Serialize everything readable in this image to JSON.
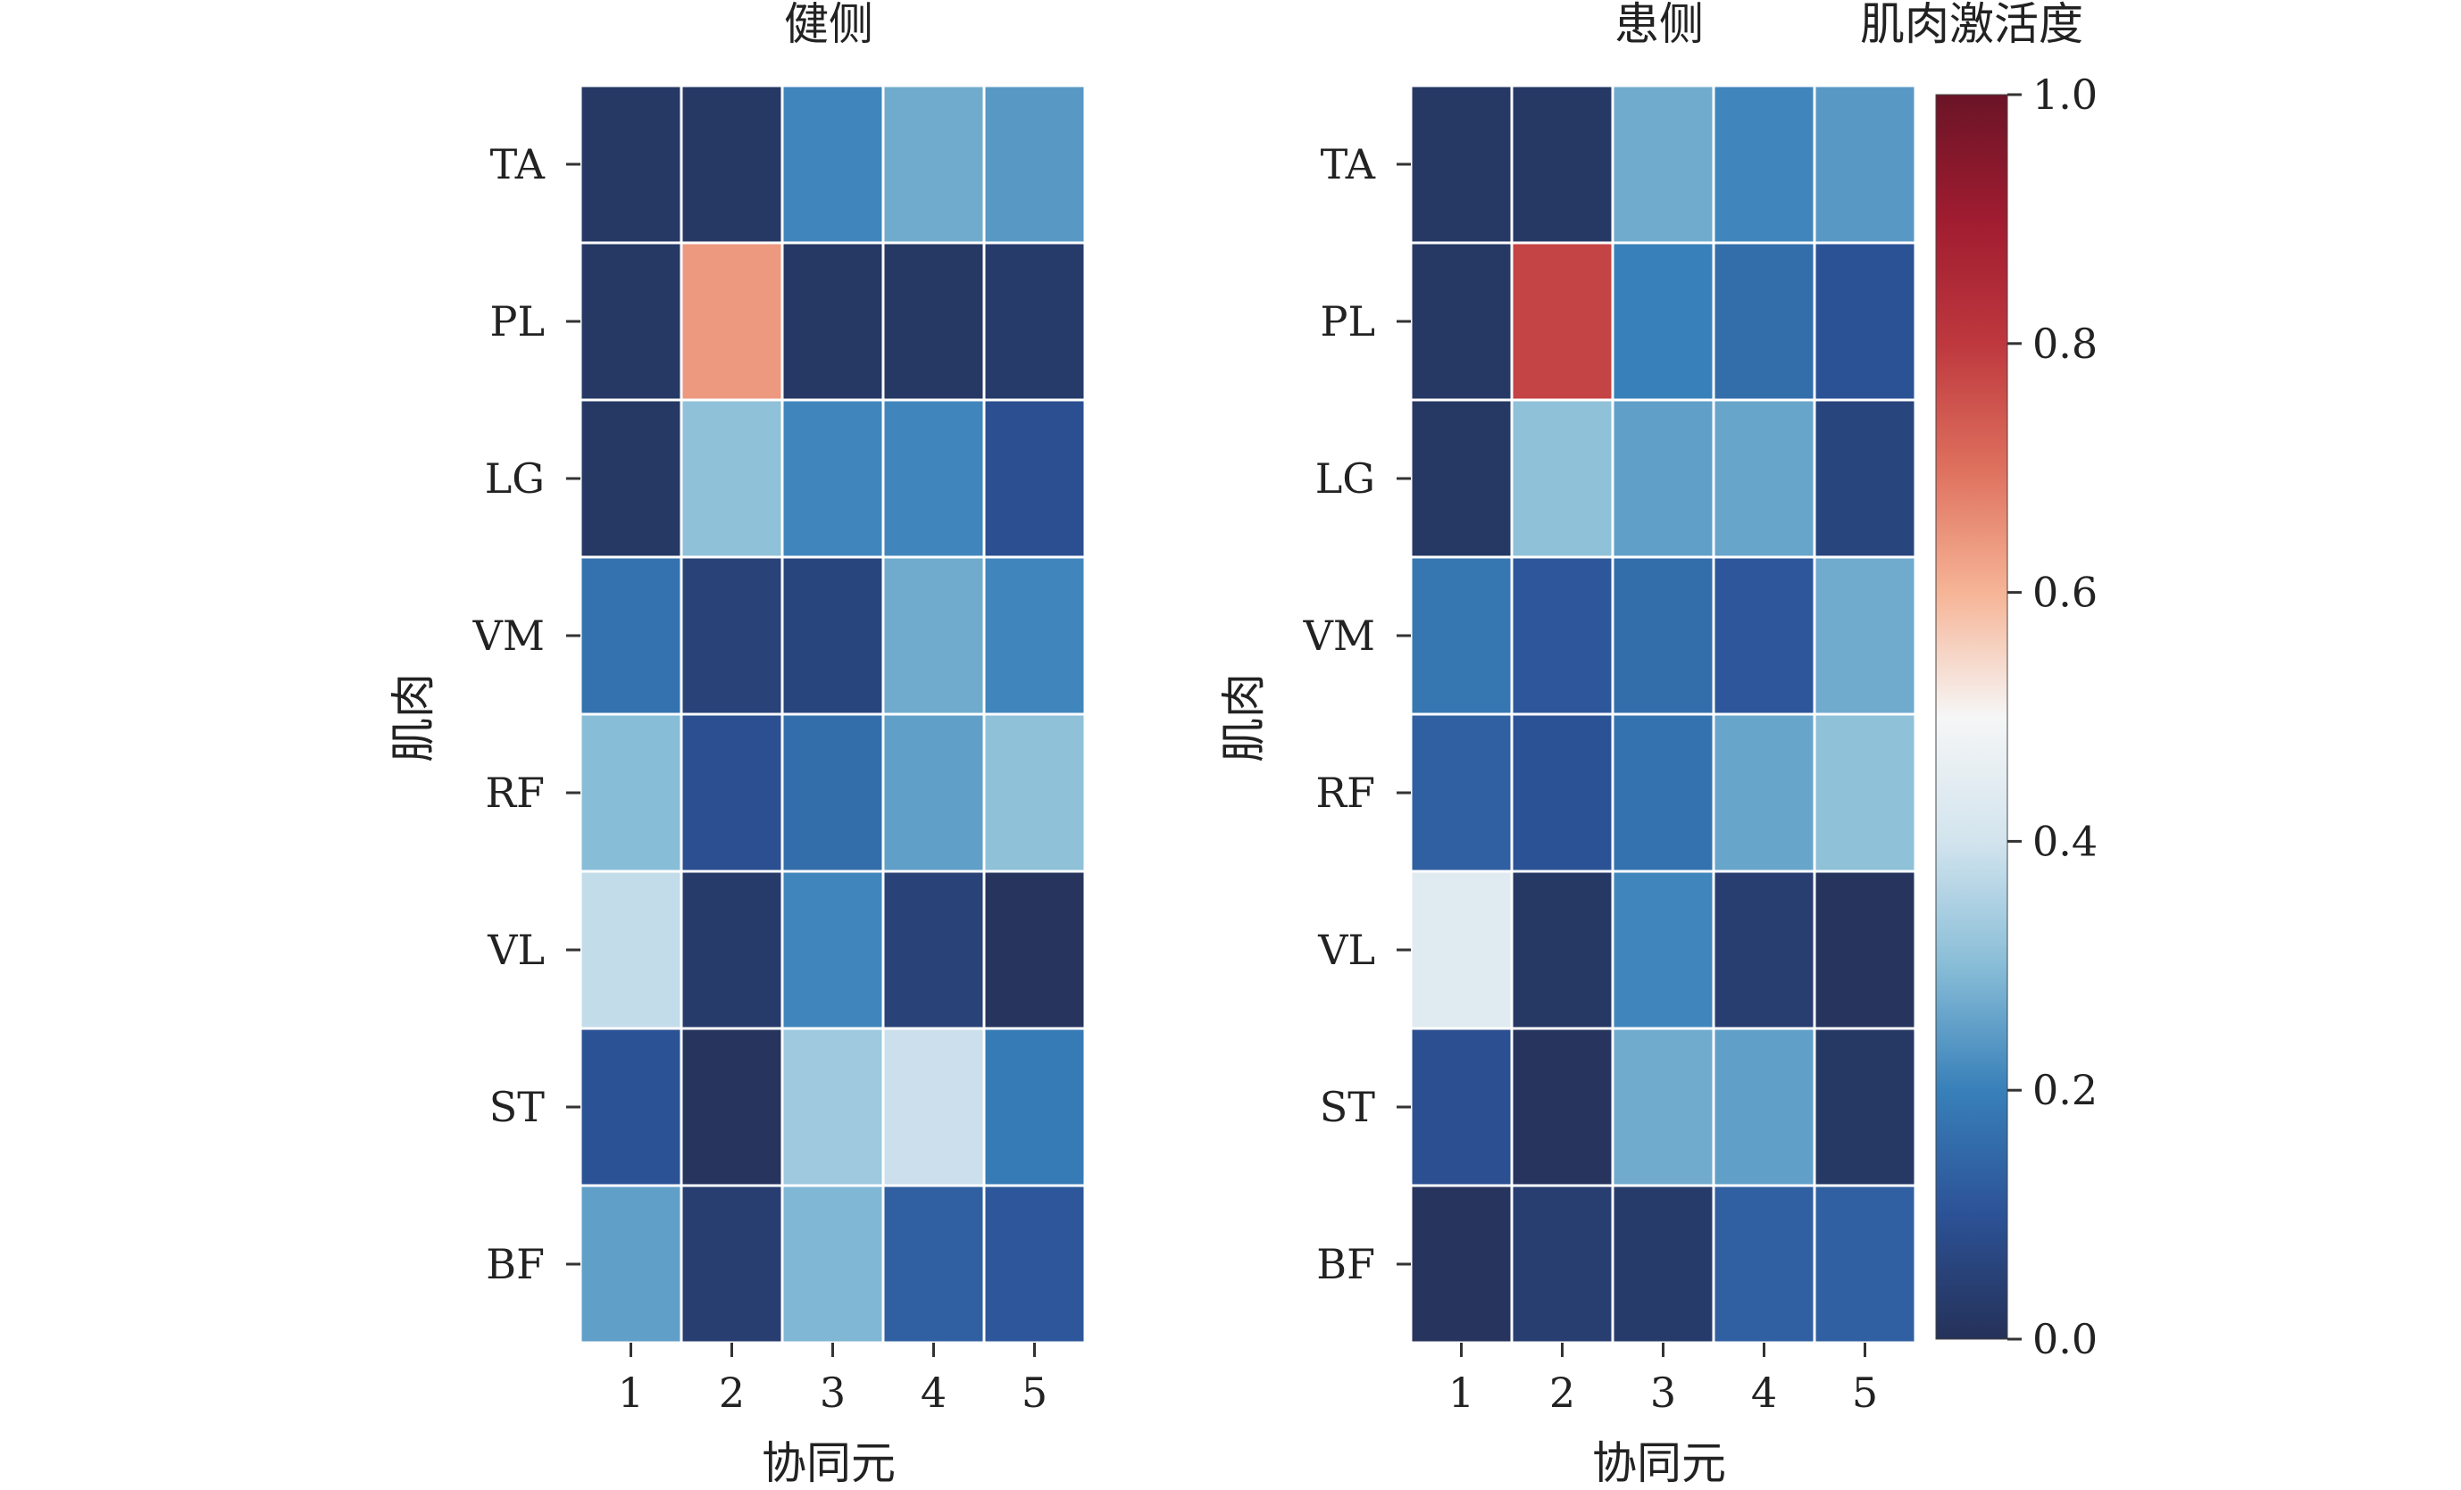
{
  "chart_data": [
    {
      "type": "heatmap",
      "title": "健侧",
      "xlabel": "协同元",
      "ylabel": "肌肉",
      "x": [
        "1",
        "2",
        "3",
        "4",
        "5"
      ],
      "y": [
        "TA",
        "PL",
        "LG",
        "VM",
        "RF",
        "VL",
        "ST",
        "BF"
      ],
      "values": [
        [
          0.02,
          0.02,
          0.21,
          0.27,
          0.24
        ],
        [
          0.02,
          0.64,
          0.02,
          0.02,
          0.03
        ],
        [
          0.02,
          0.31,
          0.21,
          0.21,
          0.09
        ],
        [
          0.17,
          0.05,
          0.06,
          0.27,
          0.21
        ],
        [
          0.3,
          0.09,
          0.16,
          0.25,
          0.31
        ],
        [
          0.38,
          0.03,
          0.21,
          0.05,
          0.01
        ],
        [
          0.1,
          0.01,
          0.33,
          0.39,
          0.19
        ],
        [
          0.25,
          0.04,
          0.29,
          0.13,
          0.11
        ]
      ],
      "zlim": [
        0.0,
        1.0
      ]
    },
    {
      "type": "heatmap",
      "title": "患侧",
      "xlabel": "协同元",
      "ylabel": "肌肉",
      "x": [
        "1",
        "2",
        "3",
        "4",
        "5"
      ],
      "y": [
        "TA",
        "PL",
        "LG",
        "VM",
        "RF",
        "VL",
        "ST",
        "BF"
      ],
      "values": [
        [
          0.02,
          0.02,
          0.27,
          0.21,
          0.24
        ],
        [
          0.02,
          0.78,
          0.2,
          0.16,
          0.1
        ],
        [
          0.02,
          0.31,
          0.25,
          0.26,
          0.06
        ],
        [
          0.18,
          0.11,
          0.16,
          0.11,
          0.27
        ],
        [
          0.13,
          0.1,
          0.17,
          0.26,
          0.31
        ],
        [
          0.44,
          0.02,
          0.21,
          0.04,
          0.01
        ],
        [
          0.09,
          0.01,
          0.27,
          0.25,
          0.02
        ],
        [
          0.01,
          0.04,
          0.03,
          0.13,
          0.13
        ]
      ],
      "zlim": [
        0.0,
        1.0
      ]
    }
  ],
  "colorbar": {
    "label": "肌肉激活度",
    "ticks": [
      "0.0",
      "0.2",
      "0.4",
      "0.6",
      "0.8",
      "1.0"
    ],
    "colormap": "RdBu_r",
    "colors": {
      "low": "#253158",
      "high": "#6b1427"
    }
  }
}
